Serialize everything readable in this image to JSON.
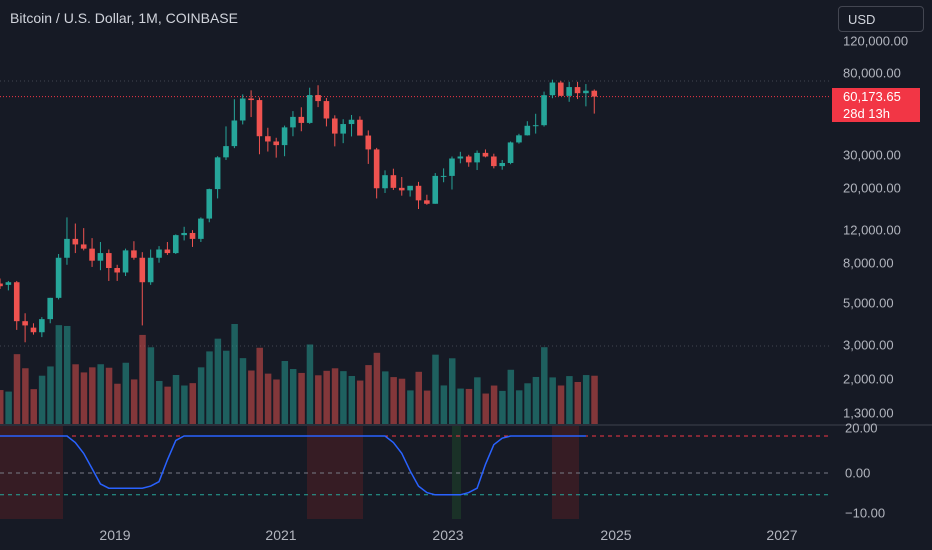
{
  "header": {
    "title": "Bitcoin / U.S. Dollar, 1M, COINBASE",
    "currency": "USD"
  },
  "price_badge": {
    "price": "60,173.65",
    "countdown": "28d 13h"
  },
  "price_axis": [
    "120,000.00",
    "80,000.00",
    "30,000.00",
    "20,000.00",
    "12,000.00",
    "8,000.00",
    "5,000.00",
    "3,000.00",
    "2,000.00",
    "1,300.00"
  ],
  "indicator_axis": [
    "20.00",
    "0.00",
    "−10.00"
  ],
  "time_axis": [
    "2019",
    "2021",
    "2023",
    "2025",
    "2027"
  ],
  "colors": {
    "up": "#26a69a",
    "down": "#ef5350",
    "indicator": "#2962ff",
    "last_price_line": "#f23645"
  },
  "chart_data": {
    "type": "candlestick",
    "title": "Bitcoin / U.S. Dollar, 1M, COINBASE",
    "scale": "log",
    "ylim": [
      1300,
      120000
    ],
    "last_price": 60173.65,
    "candles_ohlc": [
      [
        6300,
        6700,
        5900,
        6100
      ],
      [
        6200,
        6500,
        5800,
        6400
      ],
      [
        6400,
        6500,
        3600,
        4000
      ],
      [
        4000,
        4400,
        3100,
        3800
      ],
      [
        3700,
        3900,
        3400,
        3500
      ],
      [
        3500,
        4200,
        3300,
        4100
      ],
      [
        4100,
        5300,
        3900,
        5300
      ],
      [
        5300,
        9000,
        5200,
        8600
      ],
      [
        8600,
        14000,
        7900,
        10800
      ],
      [
        10800,
        13000,
        9100,
        10100
      ],
      [
        10100,
        12300,
        9400,
        9600
      ],
      [
        9600,
        10900,
        7700,
        8300
      ],
      [
        8300,
        10400,
        7400,
        9100
      ],
      [
        9100,
        9500,
        6500,
        7600
      ],
      [
        7600,
        7900,
        6500,
        7200
      ],
      [
        7200,
        9600,
        6900,
        9400
      ],
      [
        9400,
        10500,
        8400,
        8600
      ],
      [
        8600,
        9200,
        3800,
        6400
      ],
      [
        6400,
        9500,
        6200,
        8600
      ],
      [
        8600,
        9900,
        8100,
        9500
      ],
      [
        9500,
        10400,
        8900,
        9100
      ],
      [
        9100,
        11400,
        9000,
        11300
      ],
      [
        11300,
        12500,
        10600,
        11600
      ],
      [
        11600,
        12000,
        9800,
        10800
      ],
      [
        10800,
        14000,
        10400,
        13800
      ],
      [
        13800,
        19800,
        13200,
        19700
      ],
      [
        19700,
        29300,
        17600,
        28900
      ],
      [
        28900,
        42000,
        28000,
        33100
      ],
      [
        33100,
        58300,
        32300,
        45100
      ],
      [
        45100,
        61800,
        43000,
        58800
      ],
      [
        58800,
        64900,
        47000,
        57700
      ],
      [
        57700,
        59500,
        30000,
        37300
      ],
      [
        37300,
        41300,
        31000,
        35000
      ],
      [
        35000,
        36600,
        28800,
        33500
      ],
      [
        33500,
        42400,
        29300,
        41500
      ],
      [
        41500,
        50500,
        37300,
        47100
      ],
      [
        47100,
        52900,
        39600,
        43800
      ],
      [
        43800,
        67000,
        43300,
        61300
      ],
      [
        61300,
        69000,
        53000,
        57000
      ],
      [
        57000,
        59200,
        42000,
        46200
      ],
      [
        46200,
        48000,
        33000,
        38500
      ],
      [
        38500,
        45800,
        34300,
        43200
      ],
      [
        43200,
        48200,
        37200,
        45500
      ],
      [
        45500,
        47400,
        37700,
        37600
      ],
      [
        37600,
        40000,
        26700,
        31800
      ],
      [
        31800,
        32400,
        17600,
        19900
      ],
      [
        19900,
        24700,
        18800,
        23300
      ],
      [
        23300,
        25200,
        19500,
        20000
      ],
      [
        20000,
        22800,
        18200,
        19400
      ],
      [
        19400,
        20400,
        18000,
        20500
      ],
      [
        20500,
        21500,
        15500,
        17200
      ],
      [
        17200,
        18400,
        16300,
        16500
      ],
      [
        16500,
        23900,
        16500,
        23100
      ],
      [
        23100,
        25300,
        21400,
        23100
      ],
      [
        23100,
        29200,
        19600,
        28500
      ],
      [
        28500,
        30900,
        26900,
        29200
      ],
      [
        29200,
        29800,
        25800,
        27200
      ],
      [
        27200,
        31400,
        24800,
        30500
      ],
      [
        30500,
        31800,
        28900,
        29200
      ],
      [
        29200,
        30200,
        25300,
        26000
      ],
      [
        26000,
        28000,
        24900,
        27000
      ],
      [
        27000,
        35000,
        26600,
        34600
      ],
      [
        34600,
        38400,
        34100,
        37700
      ],
      [
        37700,
        44700,
        37600,
        42300
      ],
      [
        42300,
        48900,
        38500,
        42600
      ],
      [
        42600,
        63900,
        41900,
        61200
      ],
      [
        61200,
        73800,
        59000,
        71300
      ],
      [
        71300,
        72800,
        60800,
        60700
      ],
      [
        60700,
        71900,
        56500,
        67500
      ],
      [
        67500,
        71900,
        58400,
        62700
      ],
      [
        62700,
        70000,
        53500,
        64600
      ],
      [
        64600,
        65600,
        49000,
        60200
      ]
    ],
    "volume_direction": "matches candle color",
    "indicator": {
      "type": "line",
      "ylim": [
        -10,
        20
      ],
      "upper_band": 17,
      "zero_line": 0,
      "lower_band": -10,
      "values": [
        17,
        17,
        17,
        17,
        17,
        17,
        17,
        17,
        17,
        14,
        9,
        2,
        -5,
        -7,
        -7,
        -7,
        -7,
        -7,
        -6,
        -4,
        6,
        15,
        17,
        17,
        17,
        17,
        17,
        17,
        17,
        17,
        17,
        17,
        17,
        17,
        17,
        17,
        17,
        17,
        17,
        17,
        17,
        17,
        17,
        17,
        17,
        17,
        17,
        14,
        9,
        1,
        -6,
        -9,
        -10,
        -10,
        -10,
        -10,
        -9,
        -7,
        4,
        13,
        16,
        17,
        17,
        17,
        17,
        17,
        17,
        17,
        17,
        17,
        17
      ]
    }
  }
}
